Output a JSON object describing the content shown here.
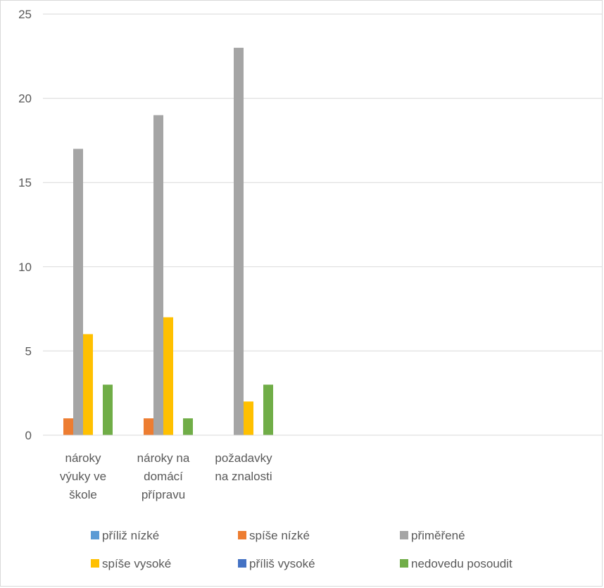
{
  "chart_data": {
    "type": "bar",
    "categories": [
      [
        "nároky",
        "výuky ve",
        "škole"
      ],
      [
        "nároky na",
        "domácí",
        "přípravu"
      ],
      [
        "požadavky",
        "na znalosti"
      ]
    ],
    "series": [
      {
        "name": "příliž nízké",
        "color": "#5B9BD5",
        "values": [
          0,
          0,
          0
        ]
      },
      {
        "name": "spíše nízké",
        "color": "#ED7D31",
        "values": [
          1,
          1,
          0
        ]
      },
      {
        "name": "přiměřené",
        "color": "#A5A5A5",
        "values": [
          17,
          19,
          23
        ]
      },
      {
        "name": "spíše vysoké",
        "color": "#FFC000",
        "values": [
          6,
          7,
          2
        ]
      },
      {
        "name": "příliš vysoké",
        "color": "#4472C4",
        "values": [
          0,
          0,
          0
        ]
      },
      {
        "name": "nedovedu posoudit",
        "color": "#70AD47",
        "values": [
          3,
          1,
          3
        ]
      }
    ],
    "ylim": [
      0,
      25
    ],
    "yticks": [
      0,
      5,
      10,
      15,
      20,
      25
    ],
    "grid": true,
    "legend": "bottom"
  }
}
